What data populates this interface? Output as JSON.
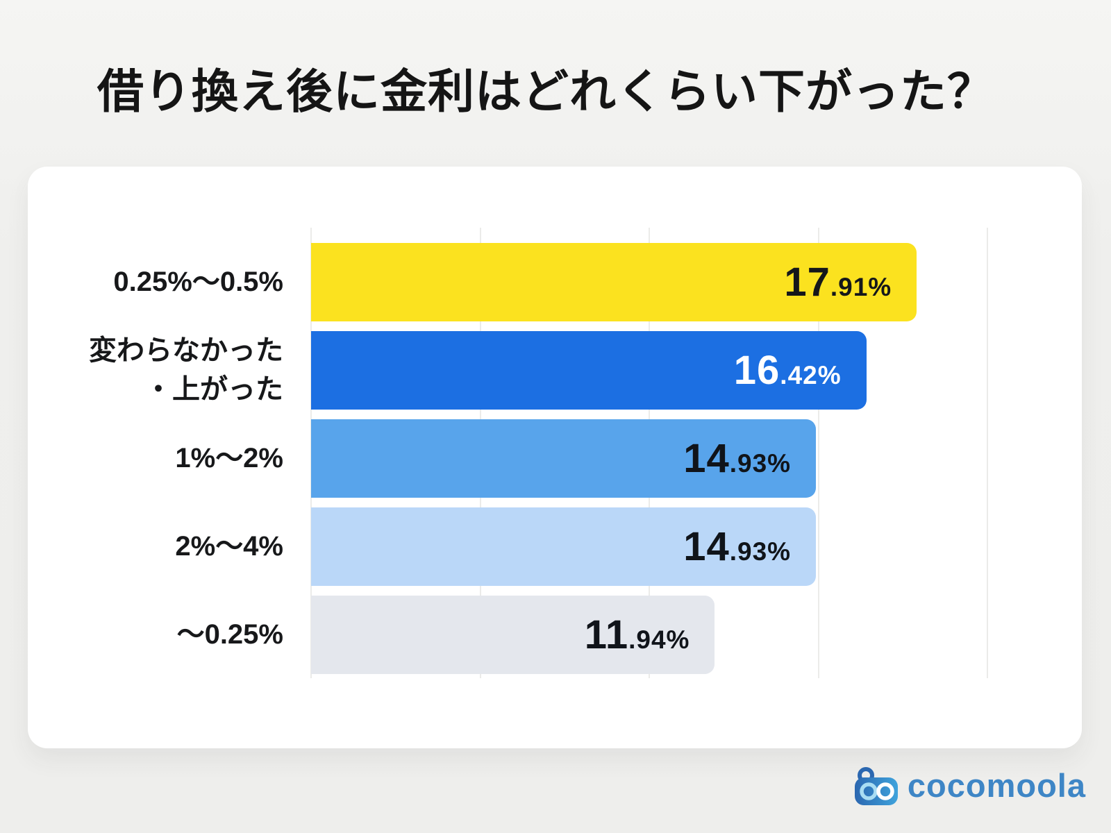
{
  "title": "借り換え後に金利はどれくらい下がった？",
  "chart_data": {
    "type": "bar",
    "orientation": "horizontal",
    "title": "借り換え後に金利はどれくらい下がった？",
    "categories": [
      "0.25%〜0.5%",
      "変わらなかった・上がった",
      "1%〜2%",
      "2%〜4%",
      "〜0.25%"
    ],
    "values": [
      17.91,
      16.42,
      14.93,
      14.93,
      11.94
    ],
    "value_labels": [
      "17.91%",
      "16.42%",
      "14.93%",
      "14.93%",
      "11.94%"
    ],
    "xlim": [
      0,
      20
    ],
    "gridline_step_pct": 5,
    "grid": true,
    "legend": "none",
    "bar_colors": [
      "#fbe21f",
      "#1c6fe2",
      "#58a4eb",
      "#bad7f8",
      "#e4e7ed"
    ]
  },
  "rows": [
    {
      "label_lines": [
        "0.25%〜0.5%"
      ],
      "value_main": "17",
      "value_frac": ".91%",
      "text_color": "#15171a"
    },
    {
      "label_lines": [
        "変わらなかった",
        "・上がった"
      ],
      "value_main": "16",
      "value_frac": ".42%",
      "text_color": "#ffffff"
    },
    {
      "label_lines": [
        "1%〜2%"
      ],
      "value_main": "14",
      "value_frac": ".93%",
      "text_color": "#10141a"
    },
    {
      "label_lines": [
        "2%〜4%"
      ],
      "value_main": "14",
      "value_frac": ".93%",
      "text_color": "#10141a"
    },
    {
      "label_lines": [
        "〜0.25%"
      ],
      "value_main": "11",
      "value_frac": ".94%",
      "text_color": "#10141a"
    }
  ],
  "logo": {
    "text": "cocomoola",
    "icon": "robot-binoculars-icon",
    "text_color": "#3e86c6",
    "icon_color_start": "#2b67b0",
    "icon_color_end": "#3fa3dc"
  },
  "colors": {
    "page_background": "#efefed",
    "card_background": "#ffffff",
    "gridline": "#ebebe9",
    "title_text": "#151515"
  }
}
